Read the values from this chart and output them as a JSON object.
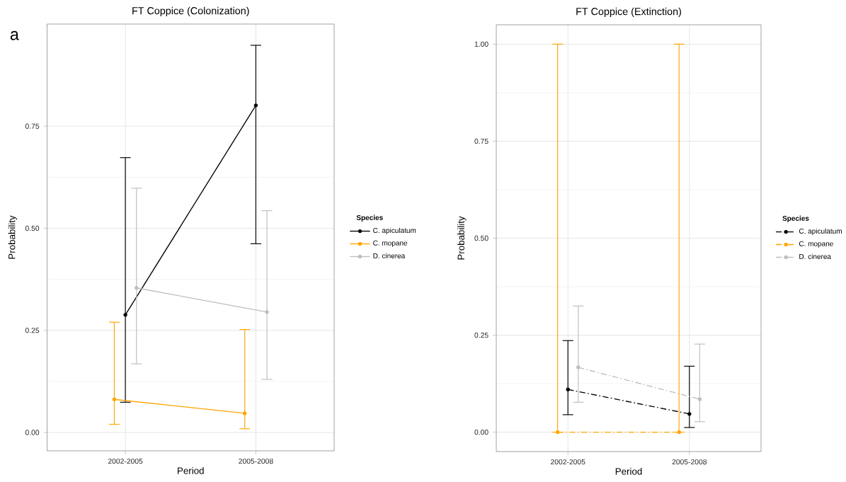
{
  "chart_data": [
    {
      "type": "line",
      "title": "FT Coppice (Colonization)",
      "xlabel": "Period",
      "ylabel": "Probability",
      "legend_title": "Species",
      "annotations": [
        "a"
      ],
      "categories": [
        "2002-2005",
        "2005-2008"
      ],
      "series": [
        {
          "name": "C. apiculatum",
          "color": "#000000",
          "values": [
            0.288,
            0.801
          ],
          "errors": [
            [
              0.074,
              0.673
            ],
            [
              0.462,
              0.948
            ]
          ]
        },
        {
          "name": "C. mopane",
          "color": "#ffa500",
          "values": [
            0.081,
            0.047
          ],
          "errors": [
            [
              0.02,
              0.27
            ],
            [
              0.009,
              0.252
            ]
          ]
        },
        {
          "name": "D. cinerea",
          "color": "#bebebe",
          "values": [
            0.354,
            0.295
          ],
          "errors": [
            [
              0.168,
              0.598
            ],
            [
              0.13,
              0.543
            ]
          ]
        }
      ],
      "ylim": [
        -0.045,
        1.0
      ],
      "yticks": [
        {
          "value": 0,
          "label": "0.00"
        },
        {
          "value": 0.25,
          "label": "0.25"
        },
        {
          "value": 0.5,
          "label": "0.50"
        },
        {
          "value": 0.75,
          "label": "0.75"
        }
      ],
      "grid": true,
      "legend": "right",
      "marker": "circle",
      "line_style": "solid"
    },
    {
      "type": "line",
      "title": "FT Coppice (Extinction)",
      "xlabel": "Period",
      "ylabel": "Probability",
      "legend_title": "Species",
      "categories": [
        "2002-2005",
        "2005-2008"
      ],
      "series": [
        {
          "name": "C. apiculatum",
          "color": "#000000",
          "values": [
            0.11,
            0.047
          ],
          "errors": [
            [
              0.045,
              0.236
            ],
            [
              0.012,
              0.17
            ]
          ]
        },
        {
          "name": "C. mopane",
          "color": "#ffa500",
          "values": [
            0.0,
            0.0
          ],
          "errors": [
            [
              0.0,
              1.0
            ],
            [
              0.0,
              1.0
            ]
          ]
        },
        {
          "name": "D. cinerea",
          "color": "#bebebe",
          "values": [
            0.167,
            0.085
          ],
          "errors": [
            [
              0.077,
              0.325
            ],
            [
              0.027,
              0.227
            ]
          ]
        }
      ],
      "ylim": [
        -0.05,
        1.05
      ],
      "yticks": [
        {
          "value": 0,
          "label": "0.00"
        },
        {
          "value": 0.25,
          "label": "0.25"
        },
        {
          "value": 0.5,
          "label": "0.50"
        },
        {
          "value": 0.75,
          "label": "0.75"
        },
        {
          "value": 1.0,
          "label": "1.00"
        }
      ],
      "grid": true,
      "legend": "right",
      "marker": "circle",
      "line_style": "dashed"
    }
  ]
}
